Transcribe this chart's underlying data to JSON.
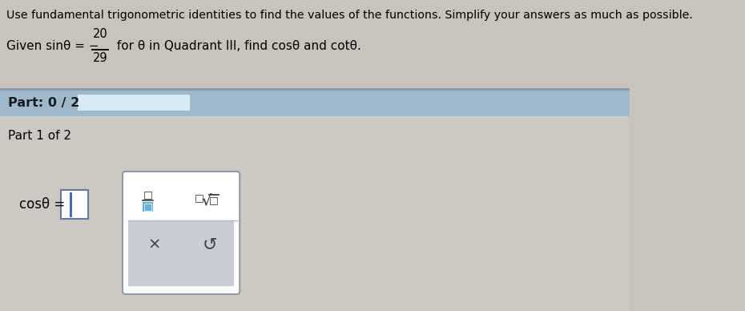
{
  "bg_color": "#c8c4bc",
  "top_text": "Use fundamental trigonometric identities to find the values of the functions. Simplify your answers as much as possible.",
  "part_bar_color": "#a0b8cc",
  "part_bar_text": "Part: 0 / 2",
  "part_label": "Part 1 of 2",
  "cos_label": "cosθ =",
  "progress_bar_color": "#d8eaf4",
  "section_bg": "#c4c0b8",
  "lower_bg": "#ccc8c2",
  "white": "#ffffff",
  "toolbar_border": "#9099a8",
  "toolbar_bottom_bg": "#c8ccd4",
  "text_dark": "#1a1a1a",
  "text_black": "#000000",
  "input_border": "#6878a0",
  "cursor_color": "#3060c0",
  "frac_color": "#303030",
  "button_color": "#404040"
}
